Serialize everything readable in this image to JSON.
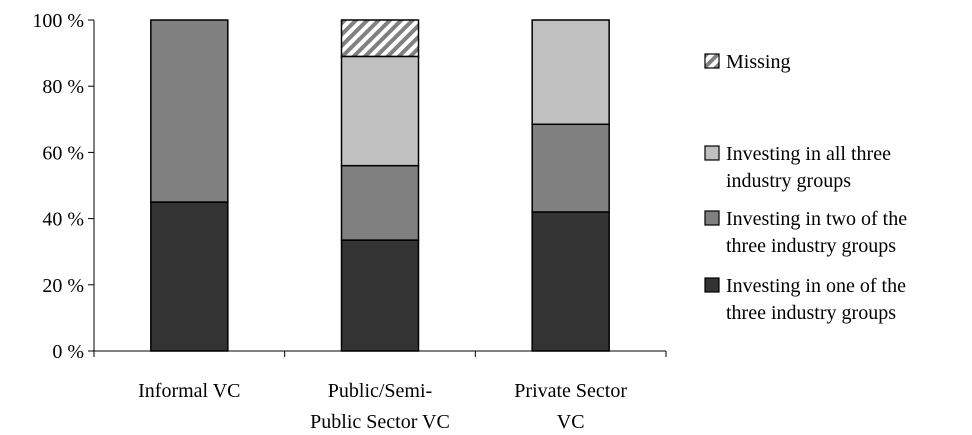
{
  "chart_data": {
    "type": "bar",
    "stacked": true,
    "orientation": "vertical",
    "categories": [
      [
        "Informal VC"
      ],
      [
        "Public/Semi-",
        "Public Sector VC"
      ],
      [
        "Private Sector",
        "VC"
      ]
    ],
    "series": [
      {
        "name": "Investing in one of the three industry groups",
        "values": [
          45,
          33.5,
          42
        ],
        "color": "#333333",
        "pattern": "solid"
      },
      {
        "name": "Investing in two of the three industry groups",
        "values": [
          55,
          22.5,
          26.5
        ],
        "color": "#808080",
        "pattern": "solid"
      },
      {
        "name": "Investing in all three industry groups",
        "values": [
          0,
          33,
          31.5
        ],
        "color": "#c0c0c0",
        "pattern": "solid"
      },
      {
        "name": "Missing",
        "values": [
          0,
          11,
          0
        ],
        "color": "#808080",
        "pattern": "diagonal-stripes"
      }
    ],
    "yticks": [
      "0 %",
      "20 %",
      "40 %",
      "60 %",
      "80 %",
      "100 %"
    ],
    "ylim": [
      0,
      100
    ],
    "legend": {
      "position": "right",
      "entries": [
        {
          "lines": [
            "Missing"
          ],
          "series": 3
        },
        {
          "lines": [
            "Investing in all three",
            "industry groups"
          ],
          "series": 2
        },
        {
          "lines": [
            "Investing in two of the",
            "three industry groups"
          ],
          "series": 1
        },
        {
          "lines": [
            "Investing in one of the",
            "three industry groups"
          ],
          "series": 0
        }
      ]
    },
    "grid": false
  }
}
